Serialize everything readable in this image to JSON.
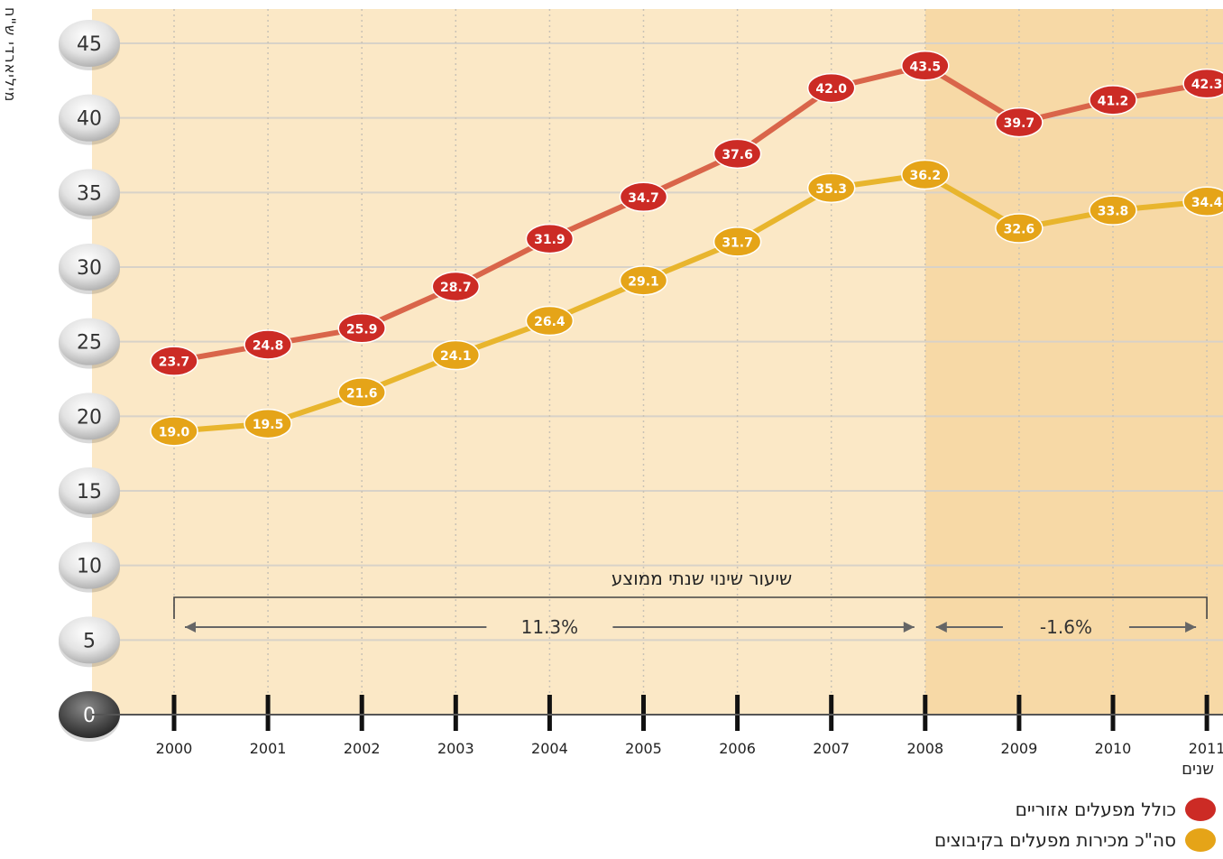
{
  "chart_data": {
    "type": "line",
    "ylabel": "מיליארדי ש\"ח",
    "xlabel": "שנים",
    "x": [
      "2000",
      "2001",
      "2002",
      "2003",
      "2004",
      "2005",
      "2006",
      "2007",
      "2008",
      "2009",
      "2010",
      "2011"
    ],
    "ylim": [
      0,
      45
    ],
    "yticks": [
      "0",
      "5",
      "10",
      "15",
      "20",
      "25",
      "30",
      "35",
      "40",
      "45"
    ],
    "grid": true,
    "series": [
      {
        "name": "כולל מפעלים אזוריים",
        "color": "#cc2b25",
        "line_color": "#d9654a",
        "values": [
          23.7,
          24.8,
          25.9,
          28.7,
          31.9,
          34.7,
          37.6,
          42.0,
          43.5,
          39.7,
          41.2,
          42.3
        ],
        "labels": [
          "23.7",
          "24.8",
          "25.9",
          "28.7",
          "31.9",
          "34.7",
          "37.6",
          "42.0",
          "43.5",
          "39.7",
          "41.2",
          "42.3"
        ]
      },
      {
        "name": "סה\"כ מכירות מפעלים בקיבוצים",
        "color": "#e5a418",
        "line_color": "#e8b52d",
        "values": [
          19.0,
          19.5,
          21.6,
          24.1,
          26.4,
          29.1,
          31.7,
          35.3,
          36.2,
          32.6,
          33.8,
          34.4
        ],
        "labels": [
          "19.0",
          "19.5",
          "21.6",
          "24.1",
          "26.4",
          "29.1",
          "31.7",
          "35.3",
          "36.2",
          "32.6",
          "33.8",
          "34.4"
        ]
      }
    ],
    "annotation": {
      "title": "שיעור שינוי שנתי ממוצע",
      "periods": [
        {
          "from": "2000",
          "to": "2008",
          "value": "11.3%"
        },
        {
          "from": "2008",
          "to": "2011",
          "value": "-1.6%"
        }
      ]
    },
    "shade_from": "2008",
    "colors": {
      "bg_light": "#fbe8c6",
      "bg_dark": "#f7d9a6"
    }
  }
}
